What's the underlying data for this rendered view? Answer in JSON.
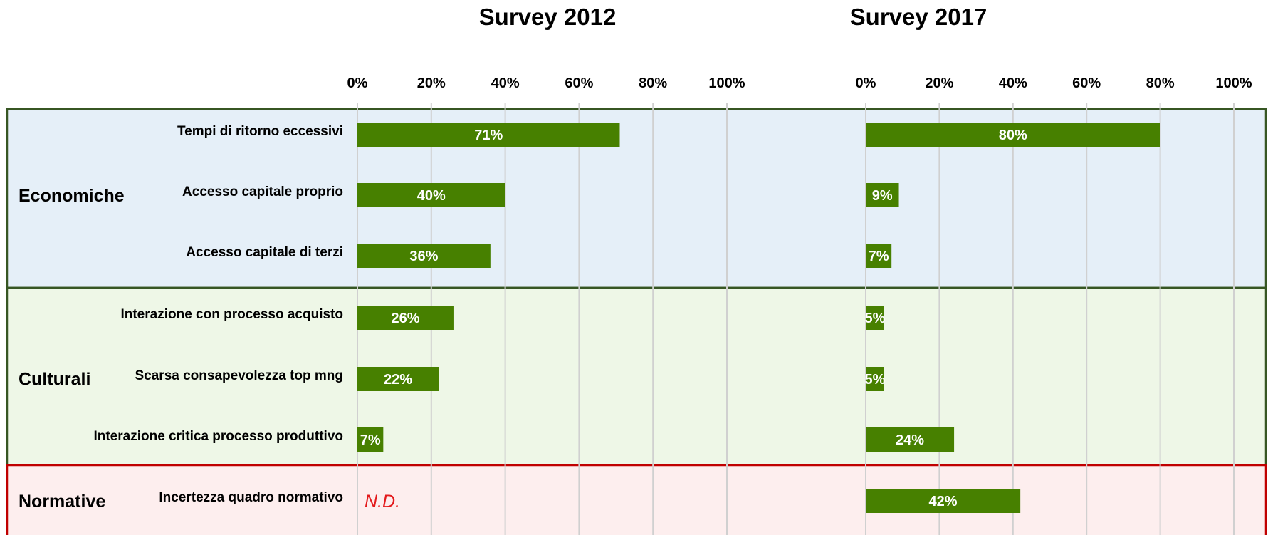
{
  "chart_data": [
    {
      "type": "bar",
      "orientation": "horizontal",
      "title": "Survey 2012",
      "xlim": [
        0,
        100
      ],
      "ticks": [
        "0%",
        "20%",
        "40%",
        "60%",
        "80%",
        "100%"
      ],
      "grid": true,
      "categories": [
        "Tempi di ritorno eccessivi",
        "Accesso capitale proprio",
        "Accesso capitale di terzi",
        "Interazione con processo acquisto",
        "Scarsa consapevolezza top mng",
        "Interazione critica processo produttivo",
        "Incertezza quadro normativo"
      ],
      "values": [
        71,
        40,
        36,
        26,
        22,
        7,
        null
      ],
      "labels": [
        "71%",
        "40%",
        "36%",
        "26%",
        "22%",
        "7%",
        "N.D."
      ]
    },
    {
      "type": "bar",
      "orientation": "horizontal",
      "title": "Survey 2017",
      "xlim": [
        0,
        100
      ],
      "ticks": [
        "0%",
        "20%",
        "40%",
        "60%",
        "80%",
        "100%"
      ],
      "grid": true,
      "categories": [
        "Tempi di ritorno eccessivi",
        "Accesso capitale proprio",
        "Accesso capitale di terzi",
        "Interazione con processo acquisto",
        "Scarsa consapevolezza top mng",
        "Interazione critica processo produttivo",
        "Incertezza quadro normativo"
      ],
      "values": [
        80,
        9,
        7,
        5,
        5,
        24,
        42
      ],
      "labels": [
        "80%",
        "9%",
        "7%",
        "5%",
        "5%",
        "24%",
        "42%"
      ]
    }
  ],
  "groups": [
    {
      "label": "Economiche",
      "members": [
        0,
        1,
        2
      ],
      "fill": "#e5eff8",
      "stroke": "#375623"
    },
    {
      "label": "Culturali",
      "members": [
        3,
        4,
        5
      ],
      "fill": "#eef7e7",
      "stroke": "#375623"
    },
    {
      "label": "Normative",
      "members": [
        6
      ],
      "fill": "#fdeeee",
      "stroke": "#c00000"
    }
  ],
  "colors": {
    "bar": "#478000",
    "grid": "#d0d0d0",
    "nd_text": "#e31a1c"
  }
}
